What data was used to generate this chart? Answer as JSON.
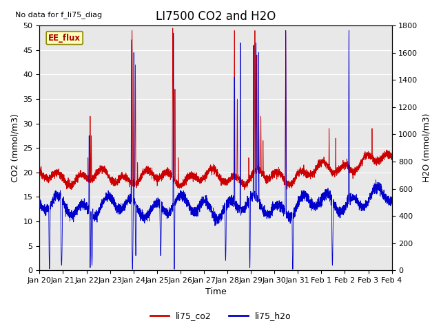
{
  "title": "LI7500 CO2 and H2O",
  "top_left_text": "No data for f_li75_diag",
  "xlabel": "Time",
  "ylabel_left": "CO2 (mmol/m3)",
  "ylabel_right": "H2O (mmol/m3)",
  "ylim_left": [
    0,
    50
  ],
  "ylim_right": [
    0,
    1800
  ],
  "yticks_left": [
    0,
    5,
    10,
    15,
    20,
    25,
    30,
    35,
    40,
    45,
    50
  ],
  "yticks_right": [
    0,
    200,
    400,
    600,
    800,
    1000,
    1200,
    1400,
    1600,
    1800
  ],
  "xtick_labels": [
    "Jan 20",
    "Jan 21",
    "Jan 22",
    "Jan 23",
    "Jan 24",
    "Jan 25",
    "Jan 26",
    "Jan 27",
    "Jan 28",
    "Jan 29",
    "Jan 30",
    "Jan 31",
    "Feb 1",
    "Feb 2",
    "Feb 3",
    "Feb 4"
  ],
  "legend_label1": "li75_co2",
  "legend_label2": "li75_h2o",
  "color_co2": "#cc0000",
  "color_h2o": "#0000cc",
  "annotation_label": "EE_flux",
  "plot_bg_color": "#e8e8e8",
  "grid_color": "white",
  "title_fontsize": 12,
  "label_fontsize": 9,
  "tick_fontsize": 8,
  "n_days": 16,
  "co2_scale": 36.0
}
